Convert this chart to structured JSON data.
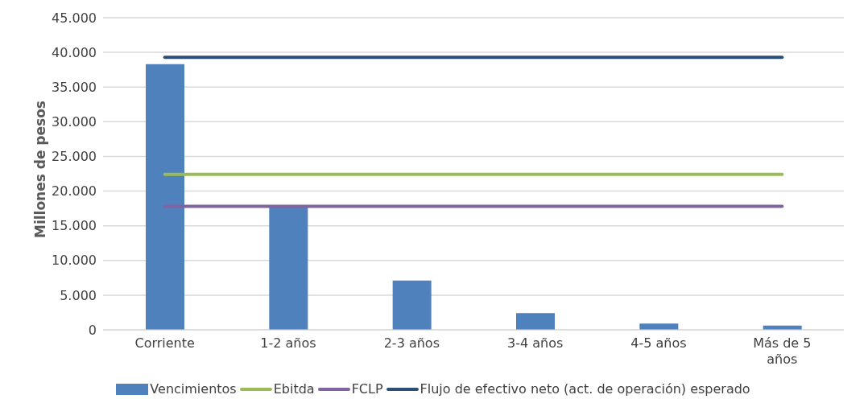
{
  "chart_data": {
    "type": "bar",
    "ylabel": "Millones de pesos",
    "categories": [
      "Corriente",
      "1-2 años",
      "2-3 años",
      "3-4 años",
      "4-5 años",
      "Más de 5 años"
    ],
    "series": [
      {
        "name": "Vencimientos",
        "color": "#4f81bd",
        "values": [
          38300,
          17700,
          7100,
          2400,
          900,
          600
        ]
      },
      {
        "name": "Ebitda",
        "type": "line",
        "color": "#9bbb59",
        "values": [
          22400,
          22400,
          22400,
          22400,
          22400,
          22400
        ]
      },
      {
        "name": "FCLP",
        "type": "line",
        "color": "#8064a2",
        "values": [
          17800,
          17800,
          17800,
          17800,
          17800,
          17800
        ]
      },
      {
        "name": "Flujo de efectivo neto (act. de operación) esperado",
        "type": "line",
        "color": "#2c4d75",
        "values": [
          39300,
          39300,
          39300,
          39300,
          39300,
          39300
        ]
      }
    ],
    "ylim": [
      0,
      45000
    ],
    "yticks": [
      {
        "value": 0,
        "label": "0"
      },
      {
        "value": 5000,
        "label": "5.000"
      },
      {
        "value": 10000,
        "label": "10.000"
      },
      {
        "value": 15000,
        "label": "15.000"
      },
      {
        "value": 20000,
        "label": "20.000"
      },
      {
        "value": 25000,
        "label": "25.000"
      },
      {
        "value": 30000,
        "label": "30.000"
      },
      {
        "value": 35000,
        "label": "35.000"
      },
      {
        "value": 40000,
        "label": "40.000"
      },
      {
        "value": 45000,
        "label": "45.000"
      }
    ],
    "grid": "y",
    "legend": "bottom",
    "marker": "none"
  }
}
